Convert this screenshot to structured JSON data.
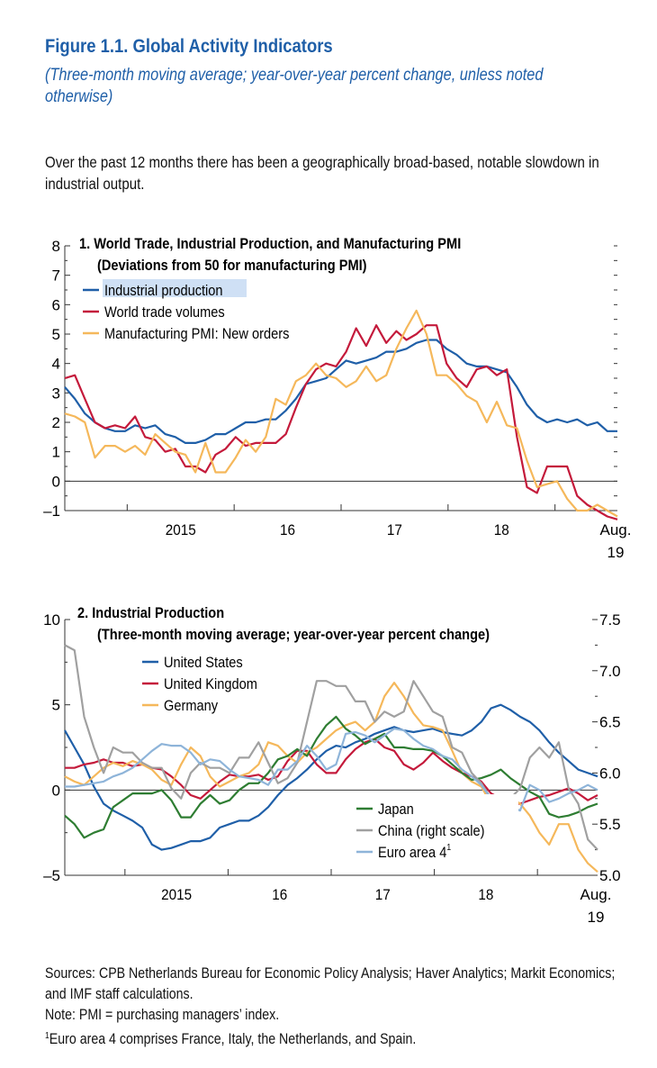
{
  "figure": {
    "title": "Figure 1.1.  Global Activity Indicators",
    "subtitle": "(Three-month moving average; year-over-year percent change, unless noted otherwise)",
    "intro": "Over the past 12 months there has been a geographically broad-based, notable slowdown in industrial output."
  },
  "footer": {
    "sources": "Sources: CPB Netherlands Bureau for Economic Policy Analysis; Haver Analytics; Markit Economics; and IMF staff calculations.",
    "note": "Note: PMI = purchasing managers’ index.",
    "footnote_mark": "1",
    "footnote": "Euro area 4 comprises France, Italy, the Netherlands, and Spain."
  },
  "chart_data": [
    {
      "type": "line",
      "title": "1. World Trade, Industrial Production, and Manufacturing PMI",
      "subtitle": "(Deviations from 50 for manufacturing PMI)",
      "x_start": "2014-06",
      "x_end": "2019-08",
      "xtick_labels": [
        "2015",
        "16",
        "17",
        "18",
        "Aug.",
        "19"
      ],
      "ylim": [
        -1,
        8
      ],
      "yticks": [
        -1,
        0,
        1,
        2,
        3,
        4,
        5,
        6,
        7,
        8
      ],
      "ytick_labels": [
        "–1",
        "0",
        "1",
        "2",
        "3",
        "4",
        "5",
        "6",
        "7",
        "8"
      ],
      "zero_line": true,
      "legend_position": "top-left",
      "series": [
        {
          "name": "Industrial production",
          "color": "#1f5fa8",
          "values": [
            3.2,
            2.8,
            2.3,
            2.0,
            1.8,
            1.7,
            1.7,
            1.9,
            1.8,
            1.9,
            1.6,
            1.5,
            1.3,
            1.3,
            1.4,
            1.6,
            1.6,
            1.8,
            2.0,
            2.0,
            2.1,
            2.1,
            2.4,
            2.8,
            3.3,
            3.4,
            3.5,
            3.8,
            4.1,
            4.0,
            4.1,
            4.2,
            4.4,
            4.4,
            4.5,
            4.7,
            4.8,
            4.8,
            4.5,
            4.3,
            4.0,
            3.9,
            3.9,
            3.8,
            3.7,
            3.2,
            2.6,
            2.2,
            2.0,
            2.1,
            2.0,
            2.1,
            1.9,
            2.0,
            1.7,
            1.7
          ]
        },
        {
          "name": "World trade volumes",
          "color": "#c41a3b",
          "values": [
            3.5,
            3.6,
            2.8,
            2.0,
            1.8,
            1.9,
            1.8,
            2.2,
            1.5,
            1.4,
            1.0,
            1.1,
            0.5,
            0.5,
            0.3,
            0.9,
            1.1,
            1.5,
            1.2,
            1.3,
            1.3,
            1.3,
            1.6,
            2.5,
            3.3,
            3.8,
            4.0,
            3.9,
            4.4,
            5.2,
            4.6,
            5.3,
            4.7,
            5.1,
            4.8,
            5.0,
            5.3,
            5.3,
            4.0,
            3.5,
            3.2,
            3.8,
            3.9,
            3.6,
            3.8,
            1.5,
            -0.2,
            -0.4,
            0.5,
            0.5,
            0.5,
            -0.5,
            -0.8,
            -1.0,
            -1.2,
            -1.3
          ]
        },
        {
          "name": "Manufacturing PMI: New orders",
          "color": "#f5b85b",
          "values": [
            2.3,
            2.2,
            2.0,
            0.8,
            1.2,
            1.2,
            1.0,
            1.2,
            0.9,
            1.6,
            1.3,
            1.0,
            0.9,
            0.3,
            1.3,
            0.3,
            0.3,
            0.8,
            1.4,
            1.0,
            1.5,
            2.8,
            2.6,
            3.4,
            3.6,
            4.0,
            3.6,
            3.5,
            3.2,
            3.4,
            3.9,
            3.4,
            3.6,
            4.5,
            5.2,
            5.8,
            5.0,
            3.6,
            3.6,
            3.3,
            2.9,
            2.7,
            2.0,
            2.7,
            1.9,
            1.8,
            0.7,
            -0.2,
            -0.1,
            0.0,
            -0.6,
            -1.0,
            -1.0,
            -0.8,
            -1.0,
            -1.2
          ]
        }
      ]
    },
    {
      "type": "line",
      "title": "2. Industrial Production",
      "subtitle": "(Three-month moving average; year-over-year percent change)",
      "x_start": "2014-06",
      "x_end": "2019-08",
      "xtick_labels": [
        "2015",
        "16",
        "17",
        "18",
        "Aug.",
        "19"
      ],
      "ylim": [
        -5,
        10
      ],
      "yticks": [
        -5,
        0,
        5,
        10
      ],
      "ytick_labels": [
        "–5",
        "0",
        "5",
        "10"
      ],
      "y2lim": [
        5.0,
        7.5
      ],
      "y2ticks": [
        5.0,
        5.5,
        6.0,
        6.5,
        7.0,
        7.5
      ],
      "y2tick_labels": [
        "5.0",
        "5.5",
        "6.0",
        "6.5",
        "7.0",
        "7.5"
      ],
      "zero_line": true,
      "legend_positions": [
        "top-left",
        "bottom-center"
      ],
      "series": [
        {
          "name": "United States",
          "color": "#1f5fa8",
          "axis": "left",
          "values": [
            3.5,
            2.5,
            1.5,
            0.2,
            -0.8,
            -1.2,
            -1.5,
            -1.8,
            -2.2,
            -3.2,
            -3.5,
            -3.4,
            -3.2,
            -3.0,
            -3.0,
            -2.8,
            -2.2,
            -2.0,
            -1.8,
            -1.8,
            -1.5,
            -1.0,
            -0.3,
            0.3,
            0.7,
            1.2,
            1.8,
            2.3,
            2.6,
            2.5,
            2.8,
            3.0,
            3.3,
            3.5,
            3.7,
            3.5,
            3.4,
            3.5,
            3.6,
            3.4,
            3.3,
            3.2,
            3.5,
            4.0,
            4.8,
            5.0,
            4.7,
            4.3,
            4.0,
            3.5,
            2.8,
            2.2,
            1.7,
            1.2,
            1.0,
            0.8
          ]
        },
        {
          "name": "United Kingdom",
          "color": "#c41a3b",
          "axis": "left",
          "values": [
            1.3,
            1.3,
            1.5,
            1.6,
            1.8,
            1.6,
            1.6,
            1.4,
            1.5,
            1.3,
            1.2,
            0.8,
            0.3,
            -0.3,
            -0.5,
            0.0,
            0.5,
            0.9,
            0.8,
            0.8,
            0.9,
            0.6,
            0.8,
            1.7,
            2.3,
            2.3,
            1.5,
            1.0,
            1.0,
            1.8,
            2.4,
            2.8,
            3.0,
            2.5,
            2.3,
            1.5,
            1.2,
            1.6,
            2.2,
            1.7,
            1.3,
            1.0,
            0.8,
            0.5,
            -0.2,
            -0.5,
            -0.8,
            -0.8,
            -0.6,
            -0.4,
            -0.3,
            -0.1,
            0.1,
            -0.2,
            -0.6,
            -0.3
          ]
        },
        {
          "name": "Germany",
          "color": "#f5b85b",
          "axis": "left",
          "values": [
            0.8,
            0.5,
            0.3,
            0.8,
            1.3,
            1.6,
            1.4,
            1.7,
            1.5,
            1.2,
            0.6,
            0.3,
            1.5,
            2.5,
            2.0,
            0.8,
            0.2,
            0.5,
            0.8,
            1.0,
            1.5,
            2.8,
            2.6,
            2.0,
            1.6,
            2.2,
            2.5,
            3.0,
            3.5,
            3.8,
            4.0,
            3.5,
            4.0,
            5.5,
            6.3,
            5.5,
            4.5,
            3.8,
            3.7,
            3.5,
            2.3,
            1.0,
            0.5,
            0.2,
            -0.8,
            -0.6,
            -0.4,
            -0.8,
            -1.5,
            -2.5,
            -3.2,
            -2.0,
            -2.0,
            -3.5,
            -4.3,
            -4.8
          ]
        },
        {
          "name": "Japan",
          "color": "#2e7d32",
          "axis": "left",
          "values": [
            -1.5,
            -2.0,
            -2.8,
            -2.5,
            -2.3,
            -1.0,
            -0.6,
            -0.2,
            -0.2,
            -0.2,
            0.0,
            -0.6,
            -1.6,
            -1.6,
            -0.8,
            -0.3,
            -0.8,
            -0.6,
            0.0,
            0.4,
            0.4,
            1.0,
            1.8,
            2.0,
            2.4,
            2.0,
            3.0,
            3.8,
            4.3,
            3.6,
            3.2,
            2.7,
            3.0,
            3.3,
            2.5,
            2.5,
            2.4,
            2.4,
            2.3,
            2.0,
            1.5,
            1.0,
            0.6,
            0.7,
            0.9,
            1.2,
            0.7,
            0.3,
            -0.1,
            -0.4,
            -1.4,
            -1.6,
            -1.5,
            -1.3,
            -1.0,
            -0.8
          ]
        },
        {
          "name": "China (right scale)",
          "color": "#a0a0a0",
          "axis": "right",
          "values": [
            7.25,
            7.2,
            6.55,
            6.25,
            6.0,
            6.25,
            6.2,
            6.2,
            6.1,
            6.05,
            6.05,
            5.85,
            5.75,
            6.0,
            6.1,
            6.05,
            6.05,
            6.0,
            6.15,
            6.15,
            6.3,
            6.1,
            5.9,
            5.95,
            6.1,
            6.5,
            6.9,
            6.9,
            6.85,
            6.85,
            6.7,
            6.7,
            6.5,
            6.6,
            6.55,
            6.6,
            6.9,
            6.75,
            6.6,
            6.55,
            6.25,
            6.2,
            6.0,
            5.9,
            5.75,
            5.7,
            5.75,
            5.85,
            6.15,
            6.25,
            6.15,
            6.3,
            5.85,
            5.7,
            5.35,
            5.25
          ]
        },
        {
          "name": "Euro area 4",
          "name_sup": "1",
          "color": "#8eb4d9",
          "axis": "left",
          "values": [
            0.2,
            0.2,
            0.3,
            0.4,
            0.5,
            0.8,
            1.0,
            1.3,
            1.8,
            2.3,
            2.7,
            2.6,
            2.6,
            2.2,
            1.5,
            1.8,
            1.7,
            1.2,
            0.8,
            0.7,
            0.6,
            0.3,
            1.2,
            1.2,
            1.7,
            2.6,
            2.0,
            1.2,
            1.5,
            3.3,
            3.4,
            3.2,
            2.8,
            3.2,
            3.6,
            3.5,
            3.0,
            2.6,
            2.4,
            2.0,
            1.8,
            1.2,
            0.8,
            0.3,
            -0.5,
            -0.5,
            -1.0,
            -1.2,
            0.3,
            0.0,
            -0.7,
            -0.5,
            -0.2,
            0.0,
            0.3,
            0.0
          ]
        }
      ]
    }
  ]
}
